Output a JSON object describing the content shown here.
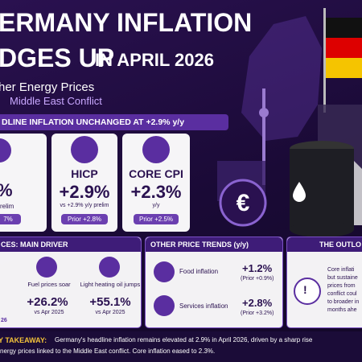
{
  "header": {
    "title_line1": "ERMANY INFLATION",
    "title_line2a": "DGES UP",
    "title_line2b": "IN APRIL 2026",
    "subtitle1": "her Energy Prices",
    "subtitle2": "Middle East Conflict"
  },
  "banner": "DLINE INFLATION UNCHANGED AT +2.9% y/y",
  "cards": [
    {
      "value": "%",
      "sub": "relim",
      "prior": "7%"
    },
    {
      "label": "HICP",
      "value": "+2.9%",
      "sub": "vs +2.9% y/y prelim",
      "prior": "Prior +2.8%"
    },
    {
      "label": "CORE CPI",
      "value": "+2.3%",
      "sub": "y/y",
      "prior": "Prior +2.5%"
    }
  ],
  "energy": {
    "title": "CES: MAIN DRIVER",
    "items": [
      {
        "label": "Fuel prices soar",
        "value": "+26.2%",
        "sub": "vs Apr 2025"
      },
      {
        "label": "Light heating oil jumps",
        "value": "+55.1%",
        "sub": "vs Apr 2025"
      }
    ],
    "footer": "26"
  },
  "trends": {
    "title": "OTHER PRICE TRENDS (y/y)",
    "items": [
      {
        "label": "Food inflation",
        "value": "+1.2%",
        "prior": "(Prior +0.9%)"
      },
      {
        "label": "Services inflation",
        "value": "+2.8%",
        "prior": "(Prior +3.2%)"
      }
    ]
  },
  "outlook": {
    "title": "THE OUTLO",
    "lines": [
      "Core inflati",
      "but sustaine",
      "prices from",
      "conflict coul",
      "to broader in",
      "months ahe"
    ]
  },
  "takeaway": {
    "label": "Y TAKEAWAY:",
    "line1": "Germany's headline inflation remains elevated at 2.9% in April 2026, driven by a sharp rise",
    "line2": "nergy prices linked to the Middle East conflict. Core inflation eased to 2.3%."
  }
}
